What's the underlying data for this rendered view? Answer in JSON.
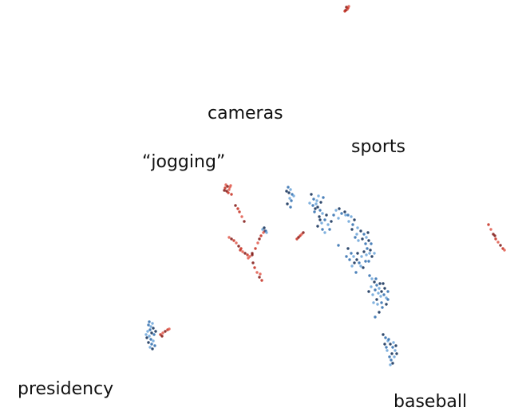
{
  "chart_data": {
    "type": "scatter",
    "annotations": [
      "cameras",
      "“jogging”",
      "sports",
      "presidency",
      "baseball"
    ],
    "colors": {
      "red_light": "#e0584a",
      "red_mid": "#c62d1f",
      "red_dark": "#7f1410",
      "blue_light": "#6aa3d8",
      "blue_mid": "#2e6cae",
      "blue_dark": "#0c2a55"
    },
    "clusters": [
      {
        "group": "red",
        "points": [
          [
            435,
            12
          ],
          [
            434,
            9
          ],
          [
            436,
            10
          ],
          [
            437,
            8
          ],
          [
            433,
            13
          ],
          [
            432,
            14
          ]
        ]
      },
      {
        "group": "red",
        "points": [
          [
            283,
            232
          ],
          [
            285,
            234
          ],
          [
            282,
            236
          ],
          [
            287,
            238
          ],
          [
            284,
            240
          ],
          [
            286,
            242
          ],
          [
            288,
            235
          ],
          [
            281,
            239
          ],
          [
            290,
            244
          ],
          [
            289,
            233
          ],
          [
            295,
            258
          ],
          [
            300,
            266
          ],
          [
            303,
            272
          ],
          [
            306,
            278
          ],
          [
            298,
            262
          ]
        ]
      },
      {
        "group": "red",
        "points": [
          [
            287,
            298
          ],
          [
            290,
            300
          ],
          [
            293,
            302
          ],
          [
            296,
            305
          ],
          [
            299,
            309
          ],
          [
            302,
            312
          ],
          [
            304,
            316
          ],
          [
            307,
            318
          ],
          [
            310,
            320
          ],
          [
            313,
            322
          ],
          [
            316,
            318
          ],
          [
            320,
            312
          ],
          [
            323,
            305
          ],
          [
            325,
            300
          ],
          [
            327,
            296
          ],
          [
            330,
            292
          ],
          [
            332,
            290
          ],
          [
            301,
            314
          ],
          [
            311,
            324
          ],
          [
            317,
            330
          ],
          [
            319,
            336
          ],
          [
            322,
            342
          ],
          [
            325,
            348
          ],
          [
            328,
            352
          ],
          [
            326,
            344
          ],
          [
            316,
            320
          ]
        ]
      },
      {
        "group": "red",
        "points": [
          [
            374,
            298
          ],
          [
            376,
            296
          ],
          [
            378,
            294
          ],
          [
            380,
            292
          ],
          [
            372,
            300
          ]
        ]
      },
      {
        "group": "red",
        "points": [
          [
            612,
            282
          ],
          [
            615,
            288
          ],
          [
            618,
            294
          ],
          [
            621,
            300
          ],
          [
            624,
            304
          ],
          [
            627,
            308
          ],
          [
            630,
            312
          ],
          [
            632,
            314
          ],
          [
            620,
            296
          ]
        ]
      },
      {
        "group": "red",
        "points": [
          [
            201,
            420
          ],
          [
            204,
            418
          ],
          [
            207,
            416
          ],
          [
            210,
            414
          ],
          [
            212,
            413
          ],
          [
            203,
            422
          ]
        ]
      },
      {
        "group": "blue",
        "points": [
          [
            361,
            235
          ],
          [
            364,
            238
          ],
          [
            362,
            242
          ],
          [
            366,
            244
          ],
          [
            363,
            249
          ],
          [
            360,
            256
          ],
          [
            365,
            252
          ],
          [
            368,
            246
          ],
          [
            359,
            240
          ],
          [
            364,
            260
          ]
        ]
      },
      {
        "group": "blue",
        "points": [
          [
            390,
            244
          ],
          [
            393,
            250
          ],
          [
            396,
            256
          ],
          [
            398,
            260
          ],
          [
            401,
            264
          ],
          [
            404,
            268
          ],
          [
            402,
            254
          ],
          [
            405,
            248
          ],
          [
            399,
            246
          ],
          [
            395,
            262
          ],
          [
            392,
            258
          ],
          [
            388,
            255
          ],
          [
            400,
            272
          ],
          [
            407,
            276
          ],
          [
            403,
            280
          ],
          [
            398,
            284
          ],
          [
            404,
            288
          ],
          [
            411,
            282
          ],
          [
            415,
            278
          ],
          [
            418,
            270
          ],
          [
            421,
            264
          ],
          [
            425,
            262
          ],
          [
            428,
            268
          ],
          [
            424,
            274
          ],
          [
            409,
            270
          ],
          [
            413,
            288
          ],
          [
            407,
            292
          ],
          [
            401,
            276
          ],
          [
            394,
            266
          ],
          [
            397,
            252
          ]
        ]
      },
      {
        "group": "blue",
        "points": [
          [
            432,
            266
          ],
          [
            436,
            270
          ],
          [
            440,
            272
          ],
          [
            444,
            276
          ],
          [
            442,
            282
          ],
          [
            448,
            286
          ],
          [
            452,
            290
          ],
          [
            456,
            294
          ],
          [
            459,
            298
          ],
          [
            462,
            302
          ],
          [
            465,
            306
          ],
          [
            447,
            294
          ],
          [
            454,
            300
          ],
          [
            458,
            306
          ],
          [
            437,
            278
          ],
          [
            441,
            288
          ],
          [
            445,
            298
          ],
          [
            449,
            302
          ],
          [
            461,
            292
          ],
          [
            424,
            308
          ],
          [
            433,
            270
          ]
        ]
      },
      {
        "group": "blue",
        "points": [
          [
            436,
            312
          ],
          [
            440,
            318
          ],
          [
            443,
            322
          ],
          [
            447,
            326
          ],
          [
            450,
            330
          ],
          [
            453,
            322
          ],
          [
            456,
            316
          ],
          [
            460,
            312
          ],
          [
            463,
            318
          ],
          [
            466,
            322
          ],
          [
            458,
            328
          ],
          [
            452,
            334
          ],
          [
            444,
            330
          ],
          [
            438,
            326
          ],
          [
            441,
            334
          ],
          [
            455,
            336
          ],
          [
            462,
            328
          ],
          [
            459,
            320
          ],
          [
            448,
            318
          ],
          [
            434,
            322
          ],
          [
            469,
            318
          ],
          [
            464,
            314
          ],
          [
            446,
            342
          ]
        ]
      },
      {
        "group": "blue",
        "points": [
          [
            463,
            346
          ],
          [
            466,
            350
          ],
          [
            469,
            354
          ],
          [
            472,
            358
          ],
          [
            475,
            362
          ],
          [
            478,
            366
          ],
          [
            481,
            370
          ],
          [
            484,
            374
          ],
          [
            476,
            356
          ],
          [
            470,
            364
          ],
          [
            467,
            370
          ],
          [
            472,
            376
          ],
          [
            478,
            380
          ],
          [
            474,
            368
          ],
          [
            482,
            362
          ],
          [
            486,
            366
          ],
          [
            465,
            360
          ],
          [
            480,
            356
          ],
          [
            471,
            350
          ],
          [
            477,
            372
          ],
          [
            484,
            382
          ],
          [
            479,
            386
          ],
          [
            468,
            380
          ],
          [
            462,
            366
          ],
          [
            486,
            376
          ],
          [
            473,
            382
          ],
          [
            475,
            392
          ],
          [
            470,
            398
          ]
        ]
      },
      {
        "group": "blue",
        "points": [
          [
            480,
            420
          ],
          [
            483,
            424
          ],
          [
            486,
            428
          ],
          [
            489,
            432
          ],
          [
            492,
            436
          ],
          [
            495,
            440
          ],
          [
            491,
            444
          ],
          [
            488,
            448
          ],
          [
            485,
            440
          ],
          [
            482,
            432
          ],
          [
            487,
            426
          ],
          [
            493,
            430
          ],
          [
            496,
            434
          ],
          [
            490,
            452
          ],
          [
            494,
            448
          ],
          [
            497,
            444
          ],
          [
            484,
            436
          ],
          [
            489,
            458
          ],
          [
            492,
            456
          ]
        ]
      },
      {
        "group": "blue",
        "points": [
          [
            329,
            288
          ],
          [
            331,
            286
          ],
          [
            333,
            290
          ],
          [
            334,
            292
          ]
        ]
      },
      {
        "group": "blue",
        "points": [
          [
            186,
            408
          ],
          [
            189,
            410
          ],
          [
            192,
            412
          ],
          [
            188,
            414
          ],
          [
            185,
            416
          ],
          [
            190,
            418
          ],
          [
            193,
            420
          ],
          [
            187,
            422
          ],
          [
            184,
            424
          ],
          [
            189,
            426
          ],
          [
            192,
            428
          ],
          [
            186,
            430
          ],
          [
            190,
            432
          ],
          [
            188,
            436
          ],
          [
            191,
            438
          ],
          [
            194,
            434
          ],
          [
            183,
            420
          ],
          [
            195,
            416
          ],
          [
            187,
            404
          ],
          [
            191,
            406
          ]
        ]
      }
    ]
  }
}
